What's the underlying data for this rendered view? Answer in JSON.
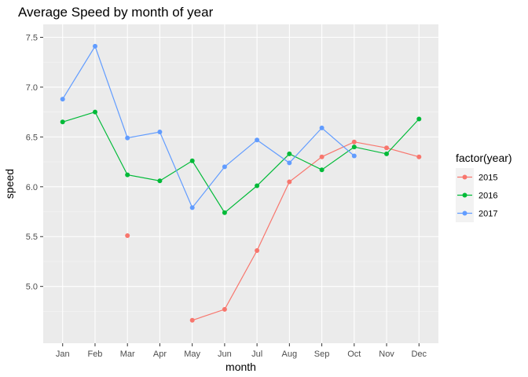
{
  "chart_data": {
    "type": "line",
    "title": "Average Speed by month of year",
    "xlabel": "month",
    "ylabel": "speed",
    "categories": [
      "Jan",
      "Feb",
      "Mar",
      "Apr",
      "May",
      "Jun",
      "Jul",
      "Aug",
      "Sep",
      "Oct",
      "Nov",
      "Dec"
    ],
    "ylim": [
      4.43,
      7.63
    ],
    "yticks": [
      5.0,
      5.5,
      6.0,
      6.5,
      7.0,
      7.5
    ],
    "ytick_labels": [
      "5.0",
      "5.5",
      "6.0",
      "6.5",
      "7.0",
      "7.5"
    ],
    "grid": true,
    "legend": {
      "title": "factor(year)",
      "placement": "right"
    },
    "series": [
      {
        "name": "2015",
        "color": "#F8766D",
        "values": [
          null,
          null,
          5.51,
          null,
          4.66,
          4.77,
          5.36,
          6.05,
          6.3,
          6.45,
          6.39,
          6.3
        ]
      },
      {
        "name": "2016",
        "color": "#00BA38",
        "values": [
          6.65,
          6.75,
          6.12,
          6.06,
          6.26,
          5.74,
          6.01,
          6.33,
          6.17,
          6.4,
          6.33,
          6.68
        ]
      },
      {
        "name": "2017",
        "color": "#619CFF",
        "values": [
          6.88,
          7.41,
          6.49,
          6.55,
          5.79,
          6.2,
          6.47,
          6.24,
          6.59,
          6.31,
          null,
          null
        ]
      }
    ]
  }
}
